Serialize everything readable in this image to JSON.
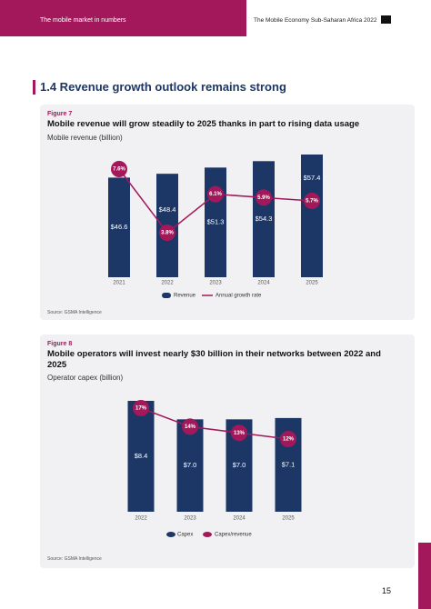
{
  "header": {
    "left": "The mobile market in numbers",
    "right": "The Mobile Economy Sub-Saharan Africa 2022"
  },
  "section_title": "1.4 Revenue growth outlook remains strong",
  "page_number": "15",
  "chart_data": [
    {
      "type": "bar",
      "figure": "Figure 7",
      "title": "Mobile revenue will grow steadily to 2025 thanks in part to rising data usage",
      "subtitle": "Mobile revenue (billion)",
      "categories": [
        "2021",
        "2022",
        "2023",
        "2024",
        "2025"
      ],
      "series": [
        {
          "name": "Revenue",
          "type": "bar",
          "color": "#1c3766",
          "values": [
            46.6,
            48.4,
            51.3,
            54.3,
            57.4
          ],
          "value_labels": [
            "$46.6",
            "$48.4",
            "$51.3",
            "$54.3",
            "$57.4"
          ]
        },
        {
          "name": "Annual growth rate",
          "type": "line",
          "color": "#a3185a",
          "values": [
            7.6,
            3.8,
            6.1,
            5.9,
            5.7
          ],
          "value_labels": [
            "7.6%",
            "3.8%",
            "6.1%",
            "5.9%",
            "5.7%"
          ]
        }
      ],
      "source": "Source: GSMA Intelligence"
    },
    {
      "type": "bar",
      "figure": "Figure 8",
      "title": "Mobile operators will invest nearly $30 billion in their networks between 2022 and 2025",
      "subtitle": "Operator capex (billion)",
      "categories": [
        "2022",
        "2023",
        "2024",
        "2025"
      ],
      "series": [
        {
          "name": "Capex",
          "type": "bar",
          "color": "#1c3766",
          "values": [
            8.4,
            7.0,
            7.0,
            7.1
          ],
          "value_labels": [
            "$8.4",
            "$7.0",
            "$7.0",
            "$7.1"
          ]
        },
        {
          "name": "Capex/revenue",
          "type": "line",
          "color": "#a3185a",
          "values": [
            17,
            14,
            13,
            12
          ],
          "value_labels": [
            "17%",
            "14%",
            "13%",
            "12%"
          ]
        }
      ],
      "source": "Source: GSMA Intelligence"
    }
  ]
}
